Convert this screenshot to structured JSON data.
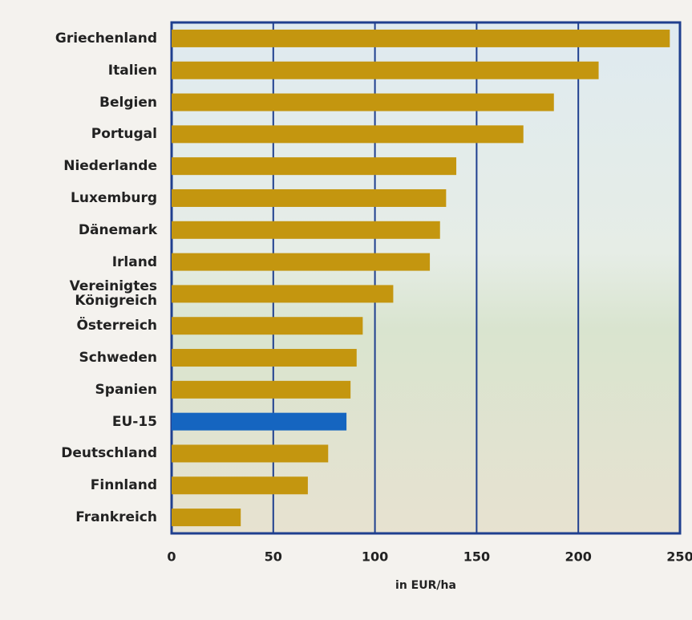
{
  "chart_data": {
    "type": "bar",
    "orientation": "horizontal",
    "x_label": "in EUR/ha",
    "categories": [
      "Griechenland",
      "Italien",
      "Belgien",
      "Portugal",
      "Niederlande",
      "Luxemburg",
      "Dänemark",
      "Irland",
      "Vereinigtes Königreich",
      "Österreich",
      "Schweden",
      "Spanien",
      "EU-15",
      "Deutschland",
      "Finnland",
      "Frankreich"
    ],
    "values": [
      245,
      210,
      188,
      173,
      140,
      135,
      132,
      127,
      109,
      94,
      91,
      88,
      86,
      77,
      67,
      34
    ],
    "colors": [
      "#c4960f",
      "#c4960f",
      "#c4960f",
      "#c4960f",
      "#c4960f",
      "#c4960f",
      "#c4960f",
      "#c4960f",
      "#c4960f",
      "#c4960f",
      "#c4960f",
      "#c4960f",
      "#1565c0",
      "#c4960f",
      "#c4960f",
      "#c4960f"
    ],
    "xlim": [
      0,
      250
    ],
    "xticks": [
      0,
      50,
      100,
      150,
      200,
      250
    ],
    "grid": true
  }
}
